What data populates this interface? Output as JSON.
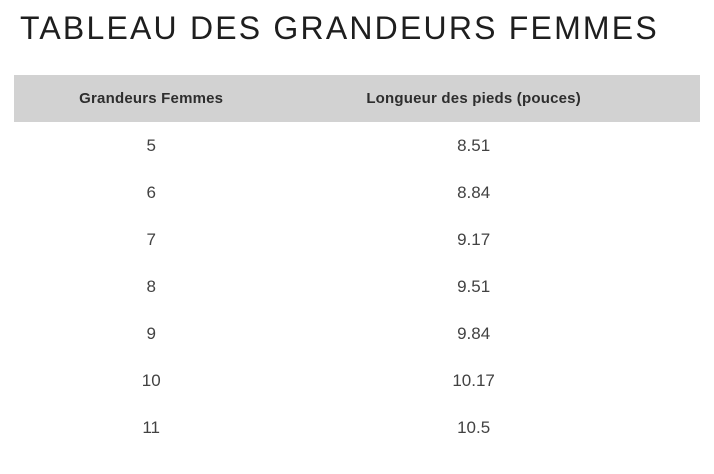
{
  "page": {
    "title": "TABLEAU DES GRANDEURS FEMMES"
  },
  "table": {
    "columns": [
      "Grandeurs Femmes",
      "Longueur des pieds (pouces)"
    ],
    "rows": [
      [
        "5",
        "8.51"
      ],
      [
        "6",
        "8.84"
      ],
      [
        "7",
        "9.17"
      ],
      [
        "8",
        "9.51"
      ],
      [
        "9",
        "9.84"
      ],
      [
        "10",
        "10.17"
      ],
      [
        "11",
        "10.5"
      ]
    ],
    "header_bg": "#d2d2d2"
  },
  "colors": {
    "title_text": "#1e1e1e",
    "header_text": "#2e2e2e",
    "body_text": "#424242"
  }
}
